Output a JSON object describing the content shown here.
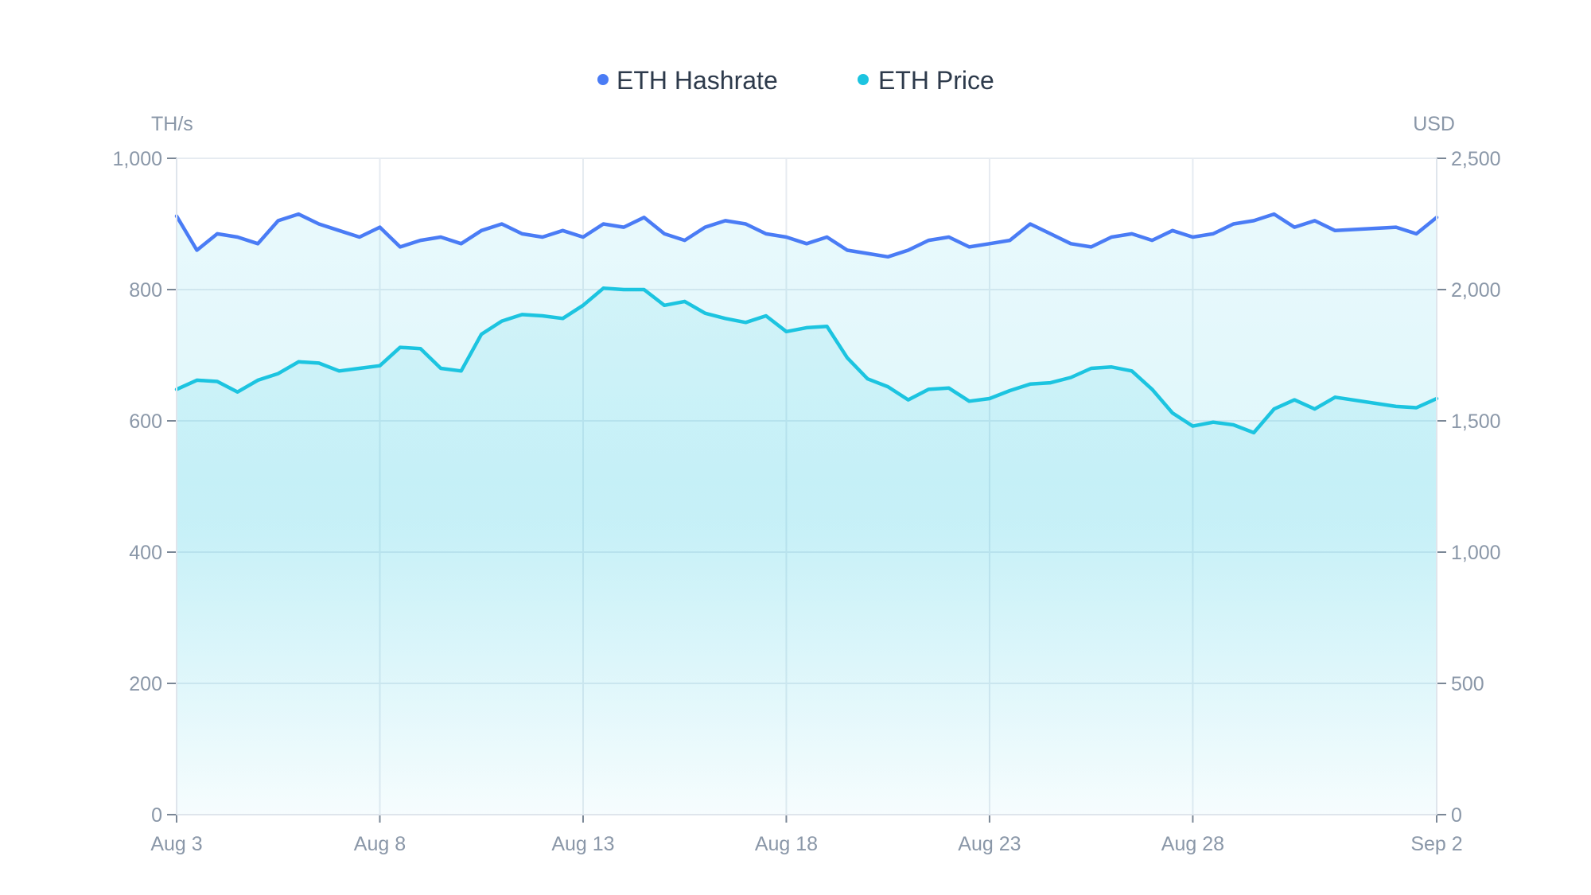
{
  "chart_data": {
    "type": "line",
    "legend_position": "top-center",
    "grid": true,
    "x_unit": "day",
    "x_ticks": [
      "Aug 3",
      "Aug 8",
      "Aug 13",
      "Aug 18",
      "Aug 23",
      "Aug 28",
      "Sep 2"
    ],
    "xlim": [
      "Aug 3",
      "Sep 2"
    ],
    "left_axis": {
      "unit": "TH/s",
      "ylim": [
        0,
        1000
      ],
      "ticks": [
        "0",
        "200",
        "400",
        "600",
        "800",
        "1,000"
      ],
      "tick_values": [
        0,
        200,
        400,
        600,
        800,
        1000
      ]
    },
    "right_axis": {
      "unit": "USD",
      "ylim": [
        0,
        2500
      ],
      "ticks": [
        "0",
        "500",
        "1,000",
        "1,500",
        "2,000",
        "2,500"
      ],
      "tick_values": [
        0,
        500,
        1000,
        1500,
        2000,
        2500
      ]
    },
    "series": [
      {
        "name": "ETH Hashrate",
        "axis": "left",
        "color": "#4a7cf5",
        "x": [
          "Aug 3",
          "Aug 3.5",
          "Aug 4",
          "Aug 4.5",
          "Aug 5",
          "Aug 5.5",
          "Aug 6",
          "Aug 6.5",
          "Aug 7",
          "Aug 7.5",
          "Aug 8",
          "Aug 8.5",
          "Aug 9",
          "Aug 9.5",
          "Aug 10",
          "Aug 10.5",
          "Aug 11",
          "Aug 11.5",
          "Aug 12",
          "Aug 12.5",
          "Aug 13",
          "Aug 13.5",
          "Aug 14",
          "Aug 14.5",
          "Aug 15",
          "Aug 15.5",
          "Aug 16",
          "Aug 16.5",
          "Aug 17",
          "Aug 17.5",
          "Aug 18",
          "Aug 18.5",
          "Aug 19",
          "Aug 19.5",
          "Aug 20",
          "Aug 20.5",
          "Aug 21",
          "Aug 21.5",
          "Aug 22",
          "Aug 22.5",
          "Aug 23",
          "Aug 23.5",
          "Aug 24",
          "Aug 24.5",
          "Aug 25",
          "Aug 25.5",
          "Aug 26",
          "Aug 26.5",
          "Aug 27",
          "Aug 27.5",
          "Aug 28",
          "Aug 28.5",
          "Aug 29",
          "Aug 29.5",
          "Aug 30",
          "Aug 30.5",
          "Aug 31",
          "Aug 31.5",
          "Sep 1",
          "Sep 1.5",
          "Sep 2"
        ],
        "values": [
          912,
          860,
          885,
          880,
          870,
          905,
          915,
          900,
          890,
          880,
          895,
          865,
          875,
          880,
          870,
          890,
          900,
          885,
          880,
          890,
          880,
          900,
          895,
          910,
          885,
          875,
          895,
          905,
          900,
          885,
          880,
          870,
          880,
          860,
          855,
          850,
          860,
          875,
          880,
          865,
          870,
          875,
          900,
          885,
          870,
          865,
          880,
          885,
          875,
          890,
          880,
          885,
          900,
          905,
          915,
          895,
          905,
          890,
          895,
          885,
          910
        ]
      },
      {
        "name": "ETH Price",
        "axis": "right",
        "color": "#1cc4e0",
        "x": [
          "Aug 3",
          "Aug 3.5",
          "Aug 4",
          "Aug 4.5",
          "Aug 5",
          "Aug 5.5",
          "Aug 6",
          "Aug 6.5",
          "Aug 7",
          "Aug 7.5",
          "Aug 8",
          "Aug 8.5",
          "Aug 9",
          "Aug 9.5",
          "Aug 10",
          "Aug 10.5",
          "Aug 11",
          "Aug 11.5",
          "Aug 12",
          "Aug 12.5",
          "Aug 13",
          "Aug 13.5",
          "Aug 14",
          "Aug 14.5",
          "Aug 15",
          "Aug 15.5",
          "Aug 16",
          "Aug 16.5",
          "Aug 17",
          "Aug 17.5",
          "Aug 18",
          "Aug 18.5",
          "Aug 19",
          "Aug 19.5",
          "Aug 20",
          "Aug 20.5",
          "Aug 21",
          "Aug 21.5",
          "Aug 22",
          "Aug 22.5",
          "Aug 23",
          "Aug 23.5",
          "Aug 24",
          "Aug 24.5",
          "Aug 25",
          "Aug 25.5",
          "Aug 26",
          "Aug 26.5",
          "Aug 27",
          "Aug 27.5",
          "Aug 28",
          "Aug 28.5",
          "Aug 29",
          "Aug 29.5",
          "Aug 30",
          "Aug 30.5",
          "Aug 31",
          "Aug 31.5",
          "Sep 1",
          "Sep 1.5",
          "Sep 2"
        ],
        "values": [
          1620,
          1655,
          1650,
          1610,
          1655,
          1680,
          1725,
          1720,
          1690,
          1700,
          1710,
          1780,
          1775,
          1700,
          1690,
          1830,
          1880,
          1905,
          1900,
          1890,
          1940,
          2005,
          2000,
          2000,
          1940,
          1955,
          1910,
          1890,
          1875,
          1900,
          1840,
          1855,
          1860,
          1740,
          1660,
          1630,
          1580,
          1620,
          1625,
          1575,
          1585,
          1615,
          1640,
          1645,
          1665,
          1700,
          1705,
          1690,
          1620,
          1530,
          1480,
          1495,
          1485,
          1455,
          1545,
          1580,
          1545,
          1590,
          1555,
          1550,
          1585
        ]
      }
    ]
  }
}
